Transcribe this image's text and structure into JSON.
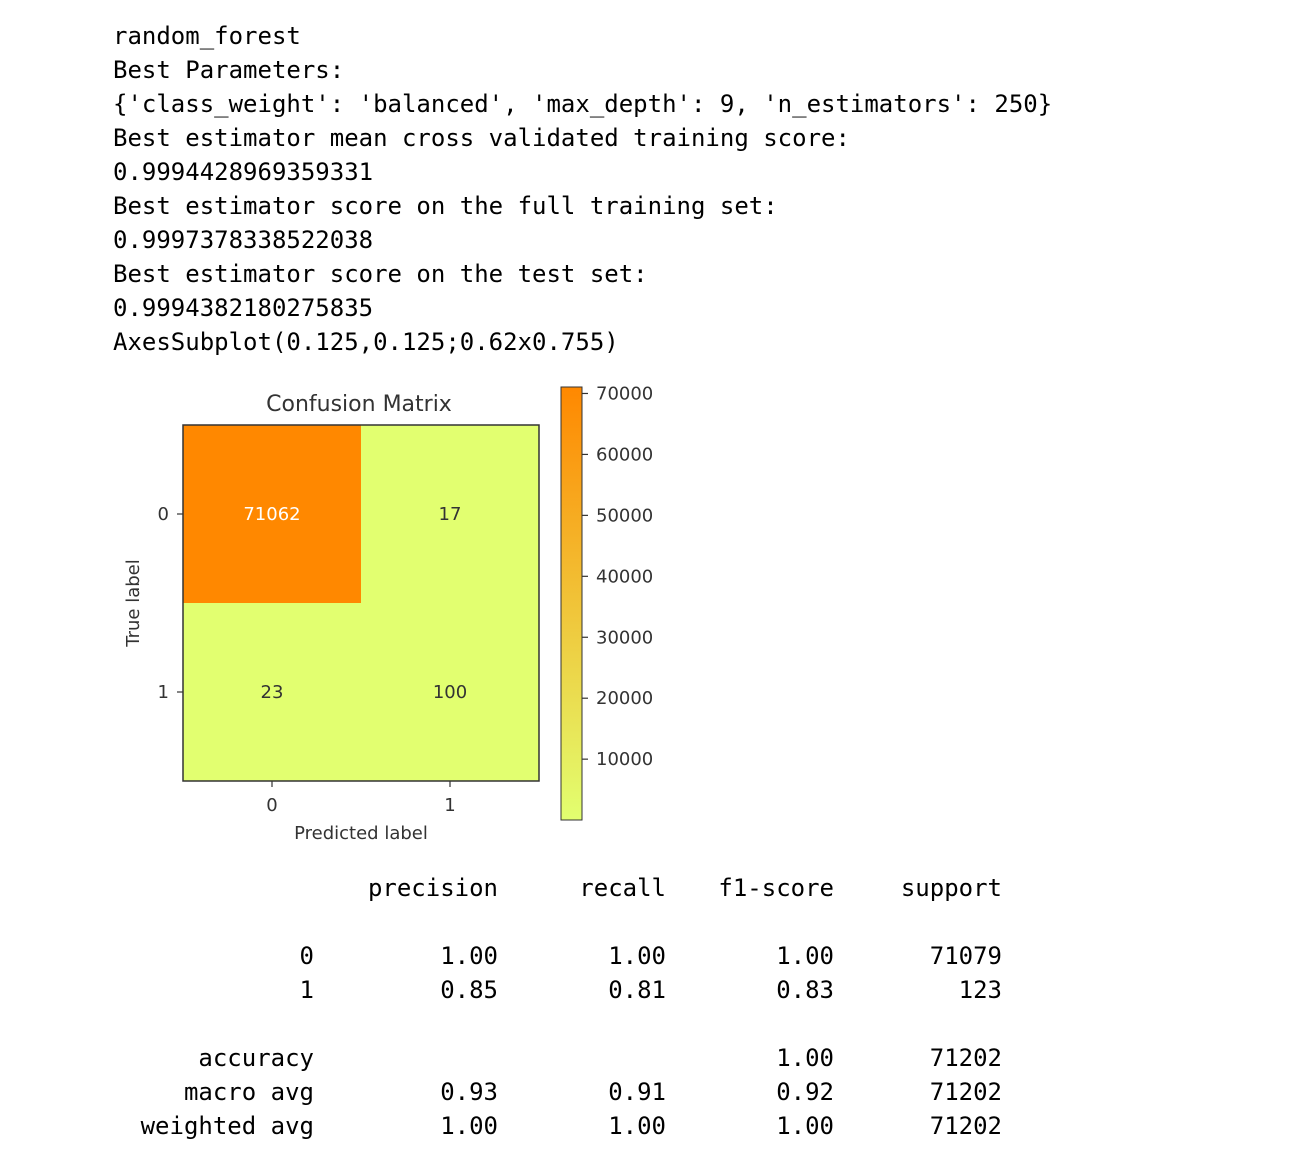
{
  "output_lines": [
    "random_forest",
    "Best Parameters:",
    "{'class_weight': 'balanced', 'max_depth': 9, 'n_estimators': 250}",
    "Best estimator mean cross validated training score:",
    "0.9994428969359331",
    "Best estimator score on the full training set:",
    "0.9997378338522038",
    "Best estimator score on the test set:",
    "0.9994382180275835",
    "AxesSubplot(0.125,0.125;0.62x0.755)"
  ],
  "chart_data": {
    "type": "heatmap",
    "title": "Confusion Matrix",
    "xlabel": "Predicted label",
    "ylabel": "True label",
    "x_categories": [
      "0",
      "1"
    ],
    "y_categories": [
      "0",
      "1"
    ],
    "values": [
      [
        71062,
        17
      ],
      [
        23,
        100
      ]
    ],
    "colorbar": {
      "ticks": [
        "10000",
        "20000",
        "30000",
        "40000",
        "50000",
        "60000",
        "70000"
      ],
      "min": 17,
      "max": 71062,
      "low_color": "#e2ff70",
      "high_color": "#ff8800"
    },
    "label_colors": {
      "on_dark": "#ffffff",
      "on_light": "#333333"
    }
  },
  "report": {
    "headers": [
      "precision",
      "recall",
      "f1-score",
      "support"
    ],
    "rows": [
      {
        "label": "0",
        "cells": [
          "1.00",
          "1.00",
          "1.00",
          "71079"
        ]
      },
      {
        "label": "1",
        "cells": [
          "0.85",
          "0.81",
          "0.83",
          "123"
        ]
      },
      {
        "label": "accuracy",
        "cells": [
          "",
          "",
          "1.00",
          "71202"
        ]
      },
      {
        "label": "macro avg",
        "cells": [
          "0.93",
          "0.91",
          "0.92",
          "71202"
        ]
      },
      {
        "label": "weighted avg",
        "cells": [
          "1.00",
          "1.00",
          "1.00",
          "71202"
        ]
      }
    ]
  }
}
